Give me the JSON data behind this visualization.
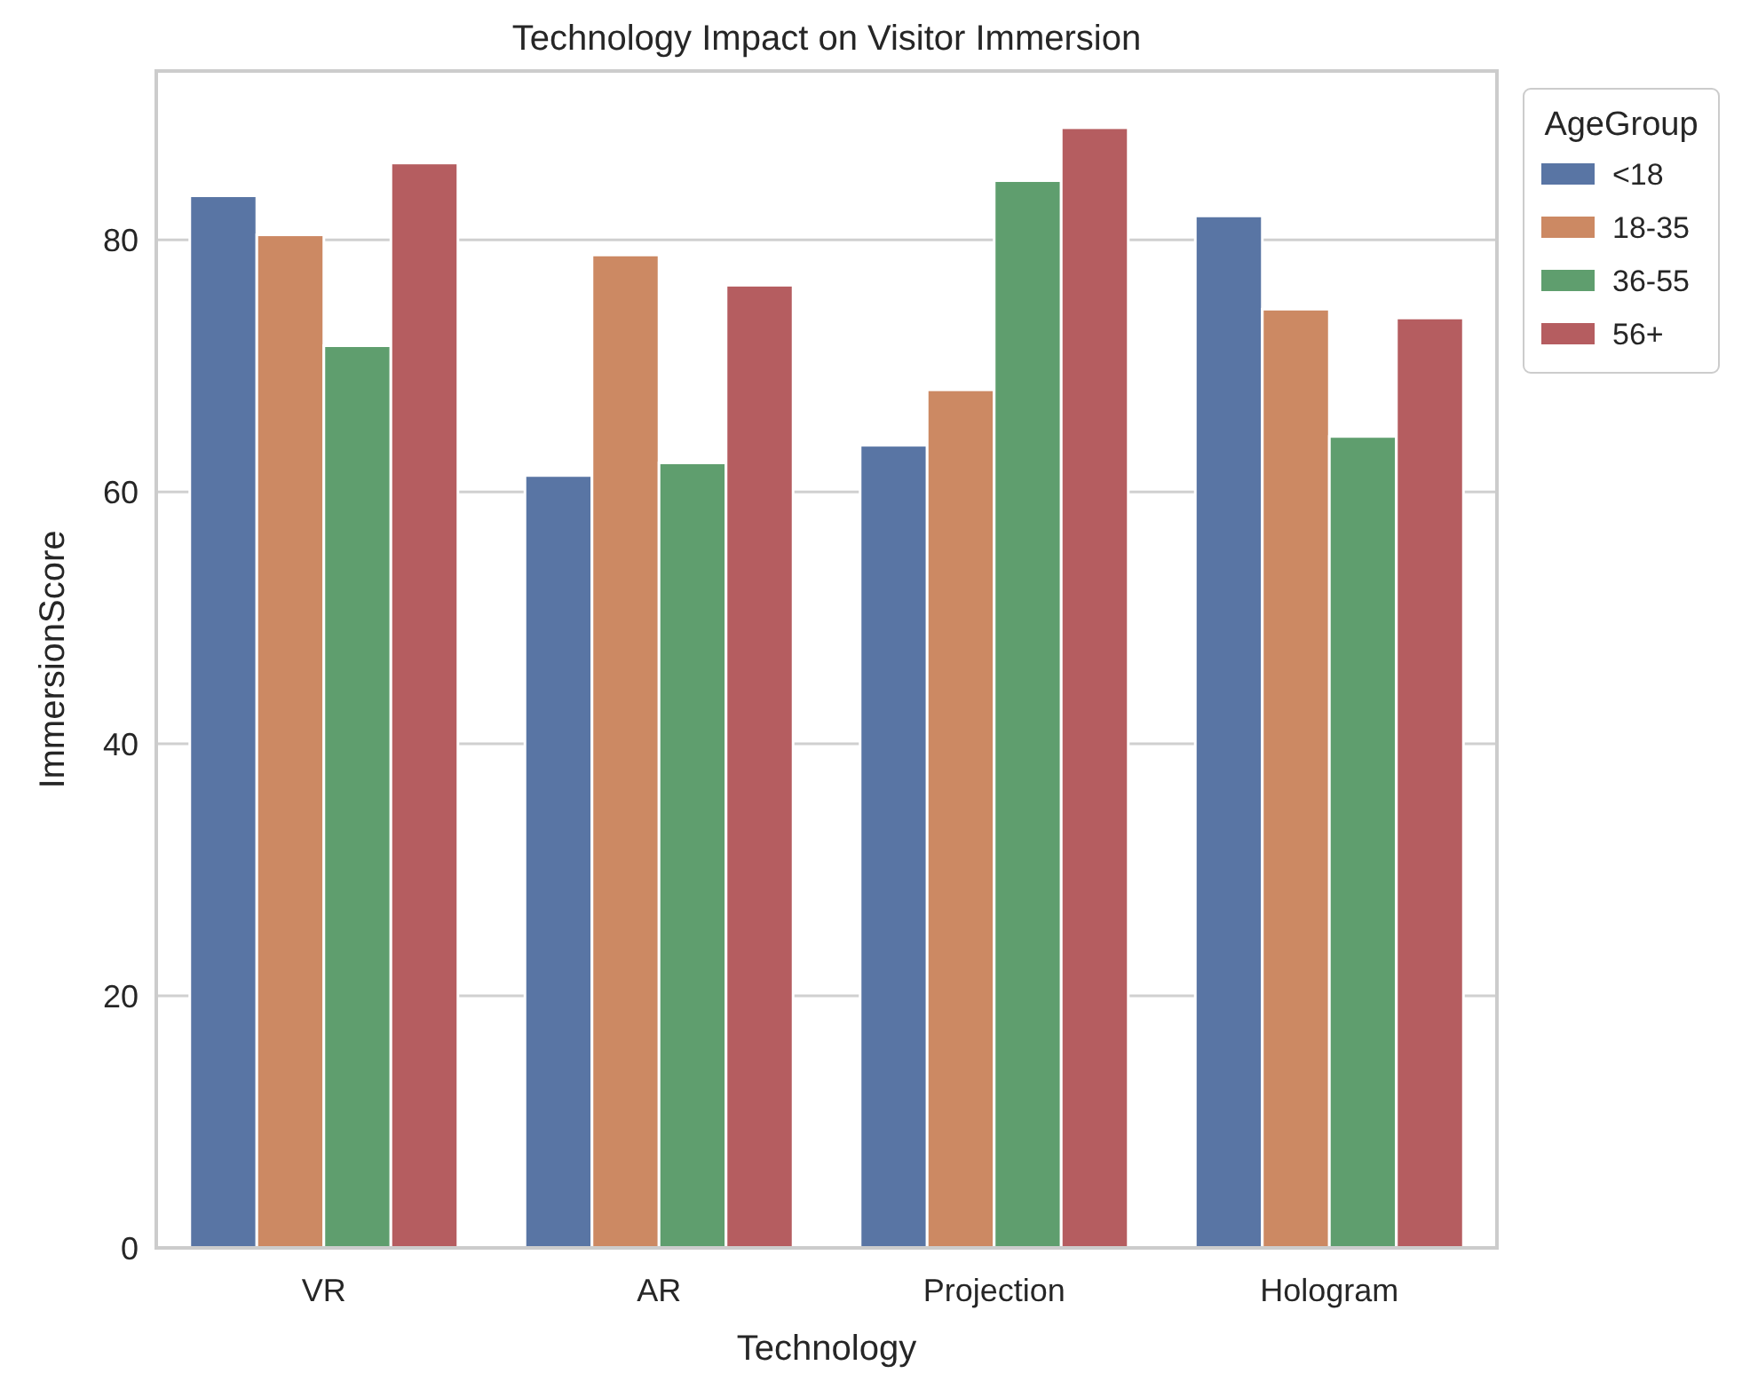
{
  "chart_data": {
    "type": "bar",
    "title": "Technology Impact on Visitor Immersion",
    "xlabel": "Technology",
    "ylabel": "ImmersionScore",
    "legend_title": "AgeGroup",
    "categories": [
      "VR",
      "AR",
      "Projection",
      "Hologram"
    ],
    "series": [
      {
        "name": "<18",
        "color": "#5975a4",
        "values": [
          83.5,
          61.3,
          63.7,
          81.9
        ]
      },
      {
        "name": "18-35",
        "color": "#cc8963",
        "values": [
          80.4,
          78.8,
          68.1,
          74.5
        ]
      },
      {
        "name": "36-55",
        "color": "#5f9e6e",
        "values": [
          71.6,
          62.3,
          84.7,
          64.4
        ]
      },
      {
        "name": "56+",
        "color": "#b55d60",
        "values": [
          86.1,
          76.4,
          88.9,
          73.8
        ]
      }
    ],
    "ylim": [
      0,
      93.4
    ],
    "yticks": [
      0,
      20,
      40,
      60,
      80
    ],
    "grid": "y",
    "legend": "right"
  }
}
